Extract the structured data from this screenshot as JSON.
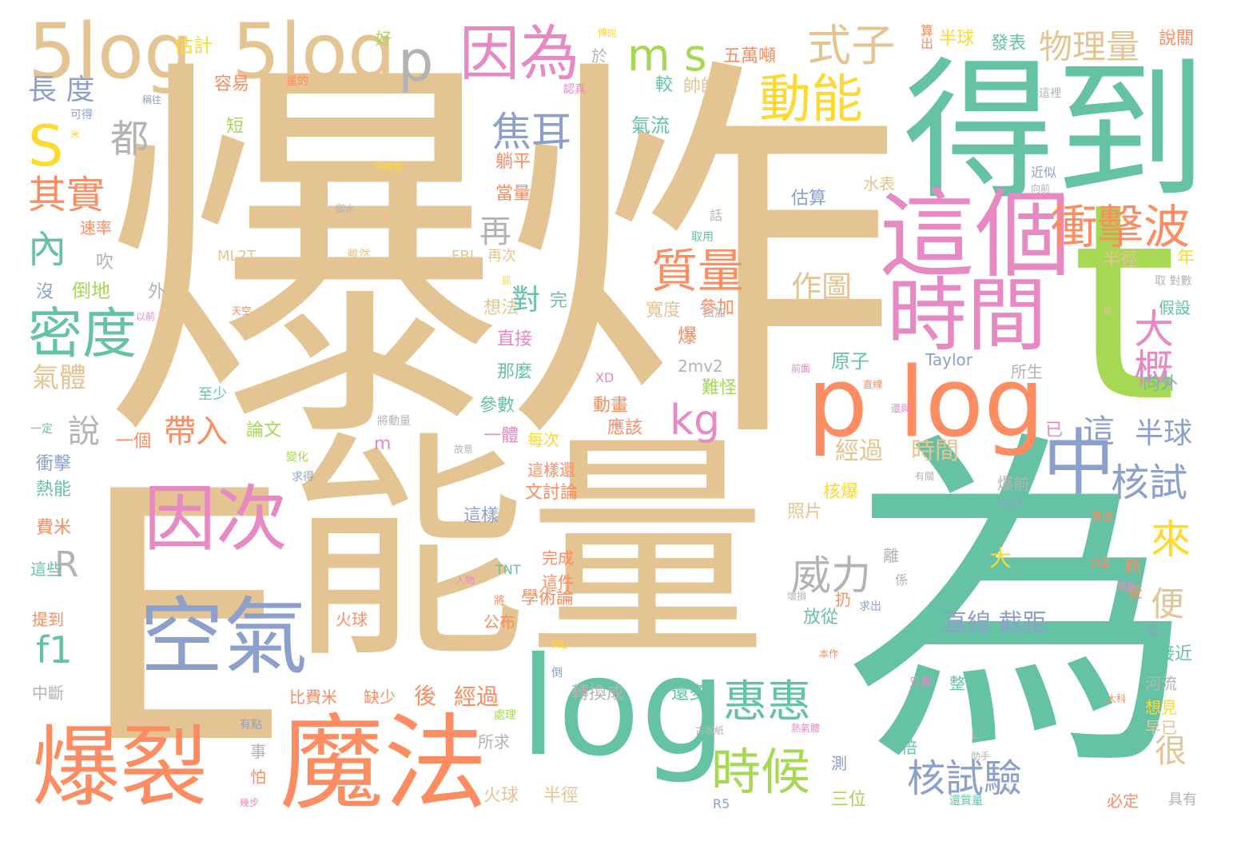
{
  "palette": {
    "tan": "#e5c494",
    "green": "#66c2a5",
    "orange": "#fc8d62",
    "pink": "#e78ac3",
    "blue": "#8da0cb",
    "lime": "#a6d854",
    "yellow": "#ffd92f",
    "gray": "#b3b3b3"
  },
  "words": [
    {
      "text": "爆炸",
      "color": "tan"
    },
    {
      "text": "E",
      "color": "tan"
    },
    {
      "text": "能量",
      "color": "tan"
    },
    {
      "text": "為",
      "color": "green"
    },
    {
      "text": "得到",
      "color": "green"
    },
    {
      "text": "t",
      "color": "lime"
    },
    {
      "text": "這個",
      "color": "pink"
    },
    {
      "text": "p log",
      "color": "orange"
    },
    {
      "text": "log",
      "color": "green"
    },
    {
      "text": "魔法",
      "color": "orange"
    },
    {
      "text": "爆裂",
      "color": "orange"
    },
    {
      "text": "空氣",
      "color": "blue"
    },
    {
      "text": "時間",
      "color": "pink"
    },
    {
      "text": "5log",
      "color": "tan"
    },
    {
      "text": "5log",
      "color": "tan"
    },
    {
      "text": "p",
      "color": "gray"
    },
    {
      "text": "因為",
      "color": "pink"
    },
    {
      "text": "因次",
      "color": "pink"
    },
    {
      "text": "中",
      "color": "blue"
    },
    {
      "text": "S",
      "color": "yellow"
    },
    {
      "text": "m s",
      "color": "lime"
    },
    {
      "text": "動能",
      "color": "yellow"
    },
    {
      "text": "式子",
      "color": "tan"
    },
    {
      "text": "物理量",
      "color": "tan"
    },
    {
      "text": "密度",
      "color": "green"
    },
    {
      "text": "衝擊波",
      "color": "orange"
    },
    {
      "text": "質量",
      "color": "orange"
    },
    {
      "text": "惠惠",
      "color": "green"
    },
    {
      "text": "時候",
      "color": "lime"
    },
    {
      "text": "核試驗",
      "color": "blue"
    },
    {
      "text": "核試",
      "color": "blue"
    },
    {
      "text": "焦耳",
      "color": "blue"
    },
    {
      "text": "kg",
      "color": "pink"
    },
    {
      "text": "威力",
      "color": "gray"
    },
    {
      "text": "大概",
      "color": "pink"
    },
    {
      "text": "來",
      "color": "yellow"
    },
    {
      "text": "其實",
      "color": "orange"
    },
    {
      "text": "都",
      "color": "gray"
    },
    {
      "text": "內",
      "color": "green"
    },
    {
      "text": "f1",
      "color": "green"
    },
    {
      "text": "說",
      "color": "gray"
    },
    {
      "text": "R",
      "color": "gray"
    },
    {
      "text": "氣體",
      "color": "tan"
    },
    {
      "text": "帶入",
      "color": "orange"
    },
    {
      "text": "半球",
      "color": "blue"
    },
    {
      "text": "作圖",
      "color": "tan"
    },
    {
      "text": "對",
      "color": "green"
    },
    {
      "text": "完",
      "color": "green"
    },
    {
      "text": "直線 截距",
      "color": "blue"
    },
    {
      "text": "經過",
      "color": "tan"
    },
    {
      "text": "時間",
      "color": "tan"
    },
    {
      "text": "便",
      "color": "tan"
    },
    {
      "text": "很",
      "color": "tan"
    },
    {
      "text": "這",
      "color": "blue"
    },
    {
      "text": "再",
      "color": "gray"
    },
    {
      "text": "長 度",
      "color": "blue"
    },
    {
      "text": "估計",
      "color": "yellow"
    },
    {
      "text": "五萬噸",
      "color": "orange"
    },
    {
      "text": "半球",
      "color": "yellow"
    },
    {
      "text": "發表",
      "color": "green"
    },
    {
      "text": "說關",
      "color": "orange"
    },
    {
      "text": "算出",
      "color": "orange"
    },
    {
      "text": "帥帥",
      "color": "tan"
    },
    {
      "text": "氣流",
      "color": "green"
    },
    {
      "text": "容易",
      "color": "orange"
    },
    {
      "text": "量的",
      "color": "orange"
    },
    {
      "text": "較",
      "color": "green"
    },
    {
      "text": "認真",
      "color": "pink"
    },
    {
      "text": "於",
      "color": "gray"
    },
    {
      "text": "好",
      "color": "lime"
    },
    {
      "text": "傳說",
      "color": "yellow"
    },
    {
      "text": "短",
      "color": "lime"
    },
    {
      "text": "可得",
      "color": "blue"
    },
    {
      "text": "躺平",
      "color": "orange"
    },
    {
      "text": "當量",
      "color": "orange"
    },
    {
      "text": "估算",
      "color": "blue"
    },
    {
      "text": "水表",
      "color": "tan"
    },
    {
      "text": "近似",
      "color": "blue"
    },
    {
      "text": "速率",
      "color": "orange"
    },
    {
      "text": "ML2T",
      "color": "tan"
    },
    {
      "text": "雖然",
      "color": "tan"
    },
    {
      "text": "FBI",
      "color": "tan"
    },
    {
      "text": "再次",
      "color": "tan"
    },
    {
      "text": "半徑",
      "color": "tan"
    },
    {
      "text": "年",
      "color": "yellow"
    },
    {
      "text": "吹",
      "color": "gray"
    },
    {
      "text": "倒地",
      "color": "lime"
    },
    {
      "text": "沒",
      "color": "blue"
    },
    {
      "text": "外",
      "color": "gray"
    },
    {
      "text": "想法",
      "color": "tan"
    },
    {
      "text": "寬度",
      "color": "tan"
    },
    {
      "text": "參加",
      "color": "orange"
    },
    {
      "text": "直接",
      "color": "pink"
    },
    {
      "text": "那麼",
      "color": "green"
    },
    {
      "text": "爆",
      "color": "orange"
    },
    {
      "text": "2mv2",
      "color": "gray"
    },
    {
      "text": "難怪",
      "color": "lime"
    },
    {
      "text": "原子",
      "color": "green"
    },
    {
      "text": "Taylor",
      "color": "blue"
    },
    {
      "text": "所生",
      "color": "gray"
    },
    {
      "text": "向外",
      "color": "green"
    },
    {
      "text": "假設",
      "color": "green"
    },
    {
      "text": "取 對數",
      "color": "gray"
    },
    {
      "text": "至少",
      "color": "green"
    },
    {
      "text": "參數",
      "color": "green"
    },
    {
      "text": "動畫",
      "color": "orange"
    },
    {
      "text": "應該",
      "color": "orange"
    },
    {
      "text": "一個",
      "color": "orange"
    },
    {
      "text": "論文",
      "color": "lime"
    },
    {
      "text": "一體",
      "color": "pink"
    },
    {
      "text": "每次",
      "color": "yellow"
    },
    {
      "text": "已",
      "color": "pink"
    },
    {
      "text": "一定",
      "color": "green"
    },
    {
      "text": "衝擊",
      "color": "blue"
    },
    {
      "text": "熱能",
      "color": "green"
    },
    {
      "text": "費米",
      "color": "orange"
    },
    {
      "text": "變化",
      "color": "lime"
    },
    {
      "text": "求得",
      "color": "blue"
    },
    {
      "text": "這樣還",
      "color": "orange"
    },
    {
      "text": "文討論",
      "color": "orange"
    },
    {
      "text": "這樣",
      "color": "blue"
    },
    {
      "text": "核爆",
      "color": "yellow"
    },
    {
      "text": "照片",
      "color": "tan"
    },
    {
      "text": "爆前",
      "color": "gray"
    },
    {
      "text": "logR",
      "color": "blue"
    },
    {
      "text": "演出",
      "color": "orange"
    },
    {
      "text": "TNT",
      "color": "green"
    },
    {
      "text": "完成",
      "color": "orange"
    },
    {
      "text": "這件",
      "color": "orange"
    },
    {
      "text": "大",
      "color": "yellow"
    },
    {
      "text": "離",
      "color": "gray"
    },
    {
      "text": "係",
      "color": "gray"
    },
    {
      "text": "跑",
      "color": "orange"
    },
    {
      "text": "查",
      "color": "orange"
    },
    {
      "text": "學術論",
      "color": "orange"
    },
    {
      "text": "扔",
      "color": "orange"
    },
    {
      "text": "求出",
      "color": "blue"
    },
    {
      "text": "放從",
      "color": "green"
    },
    {
      "text": "接近",
      "color": "green"
    },
    {
      "text": "這些",
      "color": "green"
    },
    {
      "text": "提到",
      "color": "orange"
    },
    {
      "text": "火球",
      "color": "orange"
    },
    {
      "text": "公布",
      "color": "orange"
    },
    {
      "text": "將",
      "color": "orange"
    },
    {
      "text": "ML",
      "color": "yellow"
    },
    {
      "text": "河流",
      "color": "gray"
    },
    {
      "text": "想見",
      "color": "yellow"
    },
    {
      "text": "早已",
      "color": "tan"
    },
    {
      "text": "中斷",
      "color": "gray"
    },
    {
      "text": "比費米",
      "color": "orange"
    },
    {
      "text": "缺少",
      "color": "orange"
    },
    {
      "text": "後",
      "color": "orange"
    },
    {
      "text": "經過",
      "color": "orange"
    },
    {
      "text": "轉換成",
      "color": "gray"
    },
    {
      "text": "還多",
      "color": "green"
    },
    {
      "text": "只差",
      "color": "pink"
    },
    {
      "text": "整個",
      "color": "green"
    },
    {
      "text": "處理",
      "color": "lime"
    },
    {
      "text": "所求",
      "color": "gray"
    },
    {
      "text": "事",
      "color": "gray"
    },
    {
      "text": "怕",
      "color": "orange"
    },
    {
      "text": "火球",
      "color": "tan"
    },
    {
      "text": "半徑",
      "color": "tan"
    },
    {
      "text": "三位",
      "color": "lime"
    },
    {
      "text": "倍",
      "color": "green"
    },
    {
      "text": "測",
      "color": "blue"
    },
    {
      "text": "R5",
      "color": "blue"
    },
    {
      "text": "必定",
      "color": "orange"
    },
    {
      "text": "具有",
      "color": "gray"
    },
    {
      "text": "有點",
      "color": "blue"
    },
    {
      "text": "L",
      "color": "gray"
    },
    {
      "text": "G",
      "color": "blue"
    },
    {
      "text": "m",
      "color": "pink"
    },
    {
      "text": "XD",
      "color": "pink"
    },
    {
      "text": "這裡",
      "color": "gray"
    },
    {
      "text": "取用",
      "color": "green"
    },
    {
      "text": "由加",
      "color": "gray"
    },
    {
      "text": "話",
      "color": "gray"
    },
    {
      "text": "前面",
      "color": "pink"
    },
    {
      "text": "直線",
      "color": "orange"
    },
    {
      "text": "有關",
      "color": "gray"
    },
    {
      "text": "會",
      "color": "tan"
    },
    {
      "text": "試著",
      "color": "orange"
    },
    {
      "text": "本作",
      "color": "orange"
    },
    {
      "text": "人物",
      "color": "pink"
    },
    {
      "text": "還質量",
      "color": "green"
    },
    {
      "text": "熱氣體",
      "color": "pink"
    },
    {
      "text": "壞損",
      "color": "gray"
    },
    {
      "text": "將動量",
      "color": "gray"
    },
    {
      "text": "故意",
      "color": "gray"
    },
    {
      "text": "以前",
      "color": "pink"
    },
    {
      "text": "天空",
      "color": "orange"
    },
    {
      "text": "抓",
      "color": "yellow"
    },
    {
      "text": "御水",
      "color": "gray"
    },
    {
      "text": "學家費",
      "color": "yellow"
    },
    {
      "text": "稱往",
      "color": "blue"
    },
    {
      "text": "米",
      "color": "yellow"
    },
    {
      "text": "向前",
      "color": "gray"
    },
    {
      "text": "場景",
      "color": "pink"
    },
    {
      "text": "大科",
      "color": "orange"
    },
    {
      "text": "助手",
      "color": "gray"
    },
    {
      "text": "倒",
      "color": "blue"
    },
    {
      "text": "還與",
      "color": "pink"
    },
    {
      "text": "古著紙",
      "color": "gray"
    },
    {
      "text": "幾步",
      "color": "pink"
    }
  ]
}
